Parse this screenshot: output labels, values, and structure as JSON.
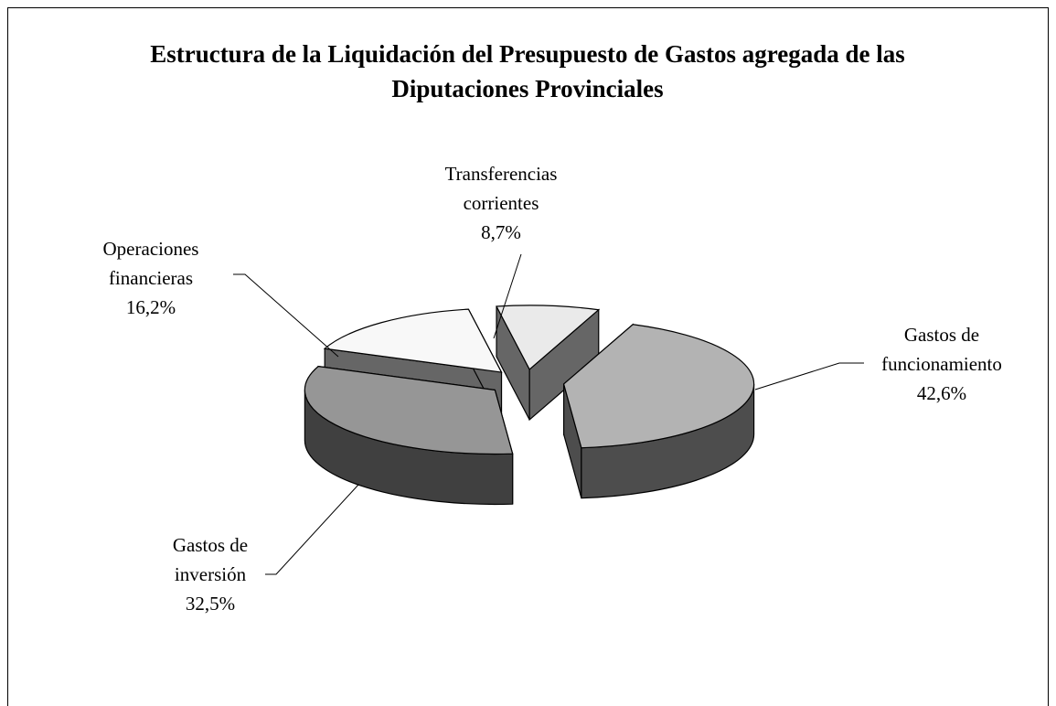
{
  "chart_data": {
    "type": "pie",
    "title": "Estructura  de la Liquidación del Presupuesto de Gastos agregada de las Diputaciones Provinciales",
    "categories": [
      "Transferencias corrientes",
      "Gastos de funcionamiento",
      "Gastos de inversión",
      "Operaciones financieras"
    ],
    "values": [
      8.7,
      42.6,
      32.5,
      16.2
    ],
    "value_labels": [
      "8,7%",
      "42,6%",
      "32,5%",
      "16,2%"
    ],
    "colors": [
      "#eaeaea",
      "#b3b3b3",
      "#969696",
      "#f8f8f8"
    ]
  }
}
